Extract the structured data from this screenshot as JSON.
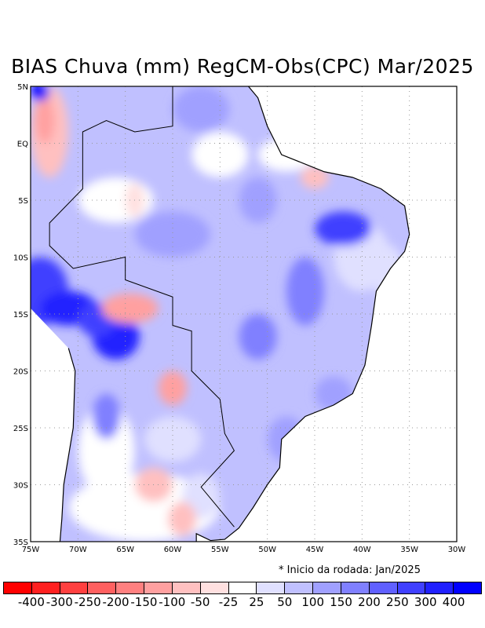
{
  "title": "BIAS Chuva (mm) RegCM-Obs(CPC) Mar/2025",
  "note": "* Inicio da rodada: Jan/2025",
  "lon_ticks": [
    "75W",
    "70W",
    "65W",
    "60W",
    "55W",
    "50W",
    "45W",
    "40W",
    "35W",
    "30W"
  ],
  "lat_ticks": [
    "5N",
    "EQ",
    "5S",
    "10S",
    "15S",
    "20S",
    "25S",
    "30S",
    "35S"
  ],
  "colorbar": {
    "labels": [
      "-400",
      "-300",
      "-250",
      "-200",
      "-150",
      "-100",
      "-50",
      "-25",
      "25",
      "50",
      "100",
      "150",
      "200",
      "250",
      "300",
      "400"
    ],
    "colors": [
      "#ff0000",
      "#ff2020",
      "#ff4040",
      "#ff6060",
      "#ff8080",
      "#ffa0a0",
      "#ffc0c0",
      "#ffe0e0",
      "#ffffff",
      "#e0e0ff",
      "#c0c0ff",
      "#a0a0ff",
      "#8080ff",
      "#6060ff",
      "#4040ff",
      "#2020ff",
      "#0000ff"
    ]
  },
  "extent": {
    "lon": [
      -75,
      -30
    ],
    "lat": [
      -35,
      5
    ]
  }
}
